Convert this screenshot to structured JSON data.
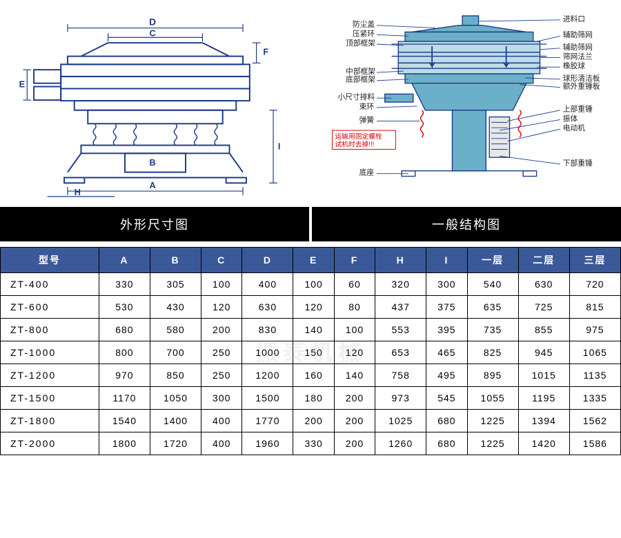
{
  "diagram_left": {
    "title": "外形尺寸图",
    "dims": [
      "A",
      "B",
      "C",
      "D",
      "E",
      "F",
      "H",
      "I"
    ],
    "colors": {
      "line": "#1a3a8a",
      "bg": "#fff"
    }
  },
  "diagram_right": {
    "title": "一般结构图",
    "labels_left": [
      "防尘盖",
      "压紧环",
      "顶部框架",
      "中部框架",
      "底部框架",
      "小尺寸排料",
      "束环",
      "弹簧",
      "底座"
    ],
    "labels_right": [
      "进料口",
      "辅助筛网",
      "辅助筛网",
      "筛网法兰",
      "橡胶球",
      "球形清洁板",
      "额外重锤板",
      "上部重锤",
      "振体",
      "电动机",
      "下部重锤"
    ],
    "warning": [
      "运输用固定螺栓",
      "试机时去掉!!!"
    ],
    "colors": {
      "body": "#6bb0c8",
      "line": "#1a3a8a",
      "warn": "#d00"
    }
  },
  "table": {
    "headers": [
      "型号",
      "A",
      "B",
      "C",
      "D",
      "E",
      "F",
      "H",
      "I",
      "一层",
      "二层",
      "三层"
    ],
    "rows": [
      [
        "ZT-400",
        "330",
        "305",
        "100",
        "400",
        "100",
        "60",
        "320",
        "300",
        "540",
        "630",
        "720"
      ],
      [
        "ZT-600",
        "530",
        "430",
        "120",
        "630",
        "120",
        "80",
        "437",
        "375",
        "635",
        "725",
        "815"
      ],
      [
        "ZT-800",
        "680",
        "580",
        "200",
        "830",
        "140",
        "100",
        "553",
        "395",
        "735",
        "855",
        "975"
      ],
      [
        "ZT-1000",
        "800",
        "700",
        "250",
        "1000",
        "150",
        "120",
        "653",
        "465",
        "825",
        "945",
        "1065"
      ],
      [
        "ZT-1200",
        "970",
        "850",
        "250",
        "1200",
        "160",
        "140",
        "758",
        "495",
        "895",
        "1015",
        "1135"
      ],
      [
        "ZT-1500",
        "1170",
        "1050",
        "300",
        "1500",
        "180",
        "200",
        "973",
        "545",
        "1055",
        "1195",
        "1335"
      ],
      [
        "ZT-1800",
        "1540",
        "1400",
        "400",
        "1770",
        "200",
        "200",
        "1025",
        "680",
        "1225",
        "1394",
        "1562"
      ],
      [
        "ZT-2000",
        "1800",
        "1720",
        "400",
        "1960",
        "330",
        "200",
        "1260",
        "680",
        "1225",
        "1420",
        "1586"
      ]
    ],
    "header_bg": "#3b5998",
    "header_fg": "#ffffff"
  },
  "watermark": "振泰机械"
}
